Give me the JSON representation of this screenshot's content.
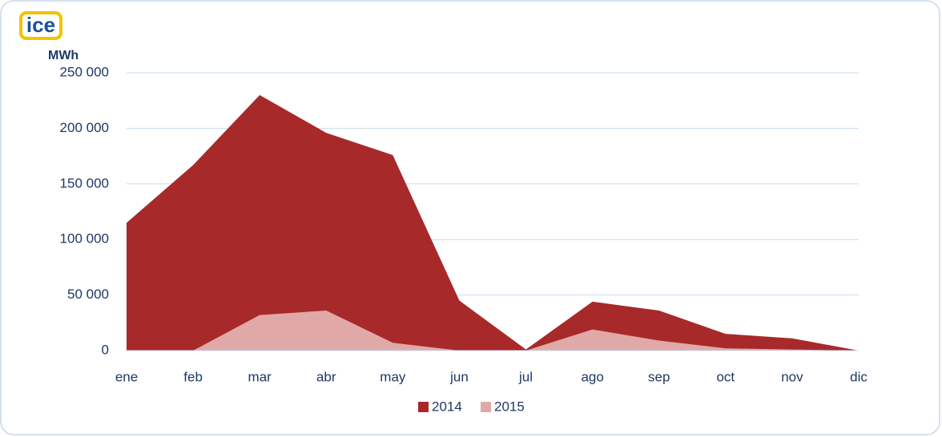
{
  "logo": "ice",
  "chart_data": {
    "type": "area",
    "y_label": "MWh",
    "categories": [
      "ene",
      "feb",
      "mar",
      "abr",
      "may",
      "jun",
      "jul",
      "ago",
      "sep",
      "oct",
      "nov",
      "dic"
    ],
    "series": [
      {
        "name": "2014",
        "color": "#a8292a",
        "values": [
          115000,
          167000,
          230000,
          196000,
          176000,
          45000,
          1000,
          44000,
          36000,
          15000,
          11000,
          0
        ]
      },
      {
        "name": "2015",
        "color": "#e0a9a8",
        "values": [
          0,
          0,
          32000,
          36000,
          7000,
          0,
          0,
          19000,
          9000,
          2000,
          1000,
          0
        ]
      }
    ],
    "ylim": [
      0,
      250000
    ],
    "yticks": [
      0,
      {
        "value": 50000,
        "label": "50 000"
      },
      {
        "value": 100000,
        "label": "100 000"
      },
      {
        "value": 150000,
        "label": "150 000"
      },
      {
        "value": 200000,
        "label": "200 000"
      },
      {
        "value": 250000,
        "label": "250 000"
      }
    ],
    "grid": true,
    "legend": "bottom"
  }
}
